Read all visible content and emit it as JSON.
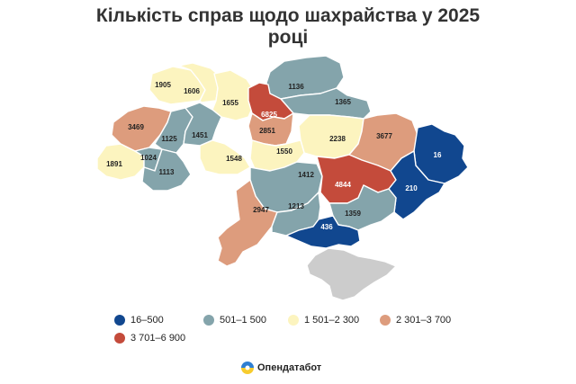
{
  "title_line1": "Кількість справ щодо шахрайства у 2025",
  "title_line2": "році",
  "colors": {
    "c1": "#11478f",
    "c2": "#84a4ab",
    "c3": "#fcf4bf",
    "c4": "#dd9c7d",
    "c5": "#c44b3b",
    "crimea": "#cccccc"
  },
  "legend": [
    {
      "label": "16–500",
      "color": "#11478f"
    },
    {
      "label": "501–1 500",
      "color": "#84a4ab"
    },
    {
      "label": "1 501–2 300",
      "color": "#fcf4bf"
    },
    {
      "label": "2 301–3 700",
      "color": "#dd9c7d"
    },
    {
      "label": "3 701–6 900",
      "color": "#c44b3b"
    }
  ],
  "regions": [
    {
      "value": "1905",
      "bin": "c3"
    },
    {
      "value": "1606",
      "bin": "c3"
    },
    {
      "value": "1655",
      "bin": "c3"
    },
    {
      "value": "1136",
      "bin": "c2"
    },
    {
      "value": "1365",
      "bin": "c2"
    },
    {
      "value": "3469",
      "bin": "c4"
    },
    {
      "value": "6825",
      "bin": "c5"
    },
    {
      "value": "1125",
      "bin": "c2"
    },
    {
      "value": "1451",
      "bin": "c2"
    },
    {
      "value": "2851",
      "bin": "c4"
    },
    {
      "value": "2238",
      "bin": "c3"
    },
    {
      "value": "3677",
      "bin": "c4"
    },
    {
      "value": "1891",
      "bin": "c3"
    },
    {
      "value": "1024",
      "bin": "c2"
    },
    {
      "value": "1113",
      "bin": "c2"
    },
    {
      "value": "1548",
      "bin": "c3"
    },
    {
      "value": "1550",
      "bin": "c3"
    },
    {
      "value": "16",
      "bin": "c1"
    },
    {
      "value": "1412",
      "bin": "c2"
    },
    {
      "value": "4844",
      "bin": "c5"
    },
    {
      "value": "210",
      "bin": "c1"
    },
    {
      "value": "2947",
      "bin": "c4"
    },
    {
      "value": "1213",
      "bin": "c2"
    },
    {
      "value": "1359",
      "bin": "c2"
    },
    {
      "value": "436",
      "bin": "c1"
    }
  ],
  "brand": "Опендатабот"
}
